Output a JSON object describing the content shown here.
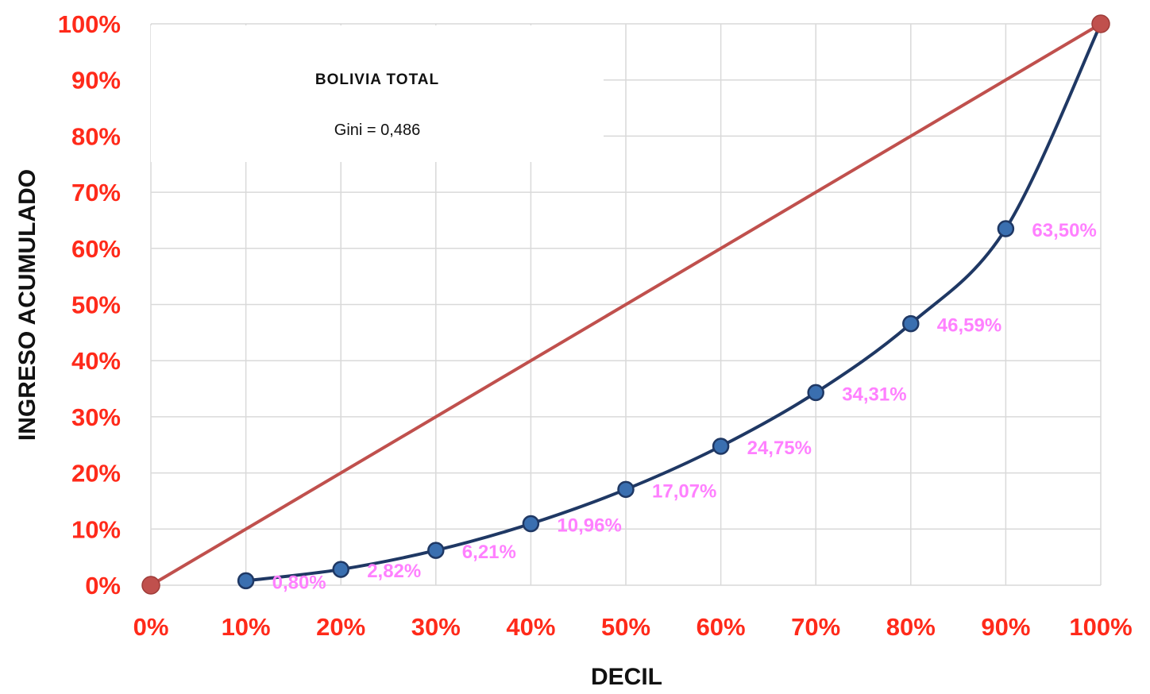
{
  "chart_data": {
    "type": "line",
    "title": "BOLIVIA TOTAL",
    "subtitle": "Gini = 0,486",
    "xlabel": "DECIL",
    "ylabel": "INGRESO ACUMULADO",
    "xlim": [
      0,
      100
    ],
    "ylim": [
      0,
      100
    ],
    "grid": true,
    "x_ticks": [
      "0%",
      "10%",
      "20%",
      "30%",
      "40%",
      "50%",
      "60%",
      "70%",
      "80%",
      "90%",
      "100%"
    ],
    "y_ticks": [
      "0%",
      "10%",
      "20%",
      "30%",
      "40%",
      "50%",
      "60%",
      "70%",
      "80%",
      "90%",
      "100%"
    ],
    "series": [
      {
        "color": "#c0504d",
        "x": [
          0,
          100
        ],
        "y": [
          0,
          100
        ]
      },
      {
        "color": "#1f3864",
        "marker_color": "#3a6fb0",
        "x": [
          10,
          20,
          30,
          40,
          50,
          60,
          70,
          80,
          90,
          100
        ],
        "y": [
          0.8,
          2.82,
          6.21,
          10.96,
          17.07,
          24.75,
          34.31,
          46.59,
          63.5,
          100
        ],
        "labels": [
          "0,80%",
          "2,82%",
          "6,21%",
          "10,96%",
          "17,07%",
          "24,75%",
          "34,31%",
          "46,59%",
          "63,50%",
          null
        ]
      }
    ],
    "colors": {
      "tick_text": "#ff2a1a",
      "data_label": "#ff80ff",
      "grid": "#d9d9d9"
    }
  }
}
